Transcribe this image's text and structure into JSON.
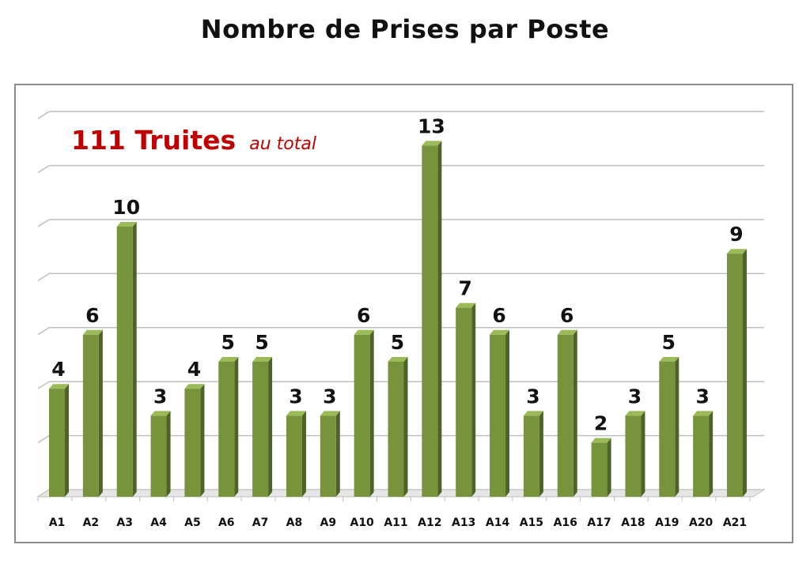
{
  "title": "Nombre de Prises par Poste",
  "annotation": {
    "main": "111 Truites",
    "sub": "au total"
  },
  "colors": {
    "bar_front": "#77933c",
    "bar_side": "#4f6228",
    "bar_top": "#9bbb59",
    "annotation": "#c00000",
    "grid": "#bfbfbf"
  },
  "chart_data": {
    "type": "bar",
    "title": "Nombre de Prises par Poste",
    "categories": [
      "A1",
      "A2",
      "A3",
      "A4",
      "A5",
      "A6",
      "A7",
      "A8",
      "A9",
      "A10",
      "A11",
      "A12",
      "A13",
      "A14",
      "A15",
      "A16",
      "A17",
      "A18",
      "A19",
      "A20",
      "A21"
    ],
    "values": [
      4,
      6,
      10,
      3,
      4,
      5,
      5,
      3,
      3,
      6,
      5,
      13,
      7,
      6,
      3,
      6,
      2,
      3,
      5,
      3,
      9
    ],
    "ylim": [
      0,
      14
    ],
    "grid": true,
    "data_labels": true,
    "style": "3d-column"
  }
}
